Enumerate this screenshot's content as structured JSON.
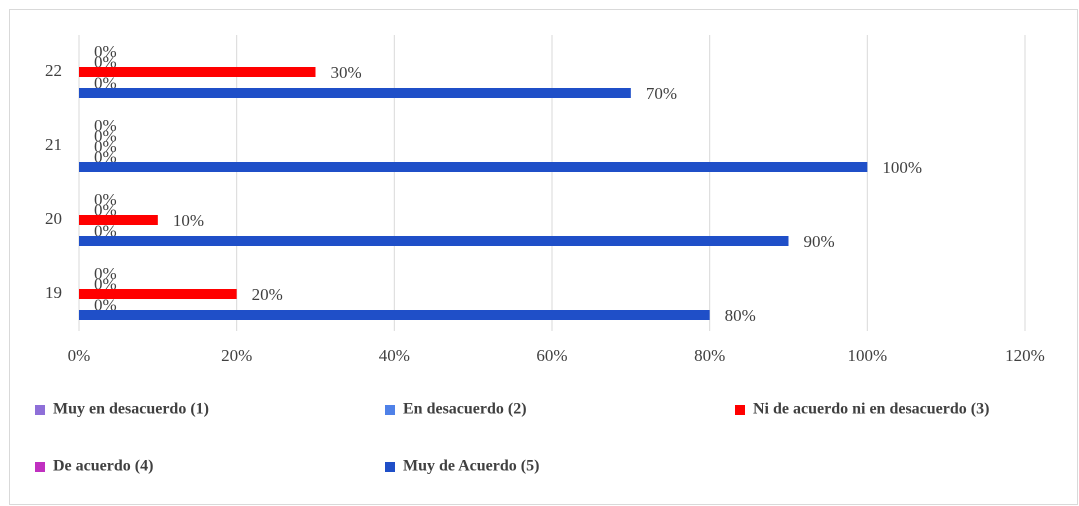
{
  "chart_data": {
    "type": "bar",
    "orientation": "horizontal",
    "categories": [
      "19",
      "20",
      "21",
      "22"
    ],
    "series": [
      {
        "name": "Muy en desacuerdo (1)",
        "color": "#8e6fd8",
        "values": [
          0,
          0,
          0,
          0
        ],
        "value_labels": [
          "0%",
          "0%",
          "0%",
          "0%"
        ]
      },
      {
        "name": "En desacuerdo (2)",
        "color": "#4f81e8",
        "values": [
          0,
          0,
          0,
          0
        ],
        "value_labels": [
          "0%",
          "0%",
          "0%",
          "0%"
        ]
      },
      {
        "name": "Ni de acuerdo ni en  desacuerdo (3)",
        "color": "#ff0000",
        "values": [
          20,
          10,
          0,
          30
        ],
        "value_labels": [
          "20%",
          "10%",
          "0%",
          "30%"
        ]
      },
      {
        "name": "De acuerdo (4)",
        "color": "#c030c0",
        "values": [
          0,
          0,
          0,
          0
        ],
        "value_labels": [
          "0%",
          "0%",
          "0%",
          "0%"
        ]
      },
      {
        "name": "Muy de Acuerdo (5)",
        "color": "#1f4fc8",
        "values": [
          80,
          90,
          100,
          70
        ],
        "value_labels": [
          "80%",
          "90%",
          "100%",
          "70%"
        ]
      }
    ],
    "xlim": [
      0,
      120
    ],
    "xticks": [
      {
        "value": 0,
        "label": "0%"
      },
      {
        "value": 20,
        "label": "20%"
      },
      {
        "value": 40,
        "label": "40%"
      },
      {
        "value": 60,
        "label": "60%"
      },
      {
        "value": 80,
        "label": "80%"
      },
      {
        "value": 100,
        "label": "100%"
      },
      {
        "value": 120,
        "label": "120%"
      }
    ],
    "grid": true,
    "legend": "bottom"
  }
}
